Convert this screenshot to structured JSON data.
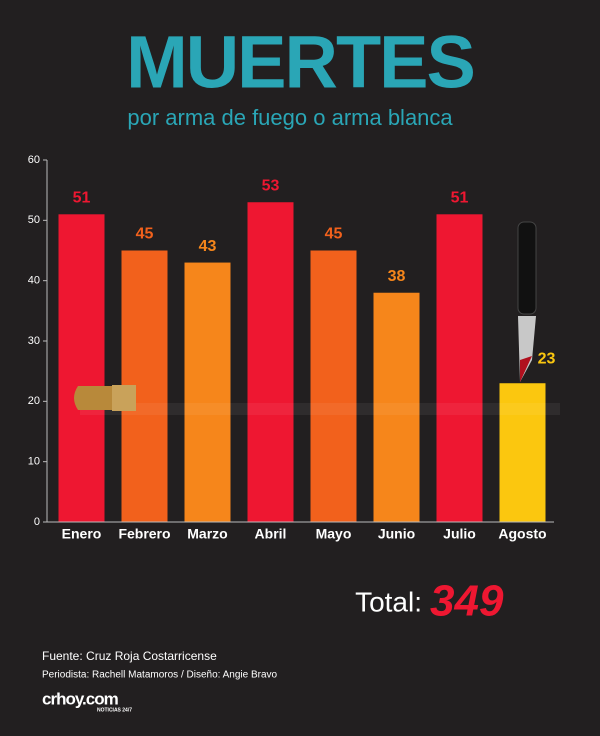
{
  "chart_data": {
    "type": "bar",
    "title": "MUERTES",
    "subtitle": "por arma de fuego o arma blanca",
    "categories": [
      "Enero",
      "Febrero",
      "Marzo",
      "Abril",
      "Mayo",
      "Junio",
      "Julio",
      "Agosto"
    ],
    "values": [
      51,
      45,
      43,
      53,
      45,
      38,
      51,
      23
    ],
    "colors": [
      "#ee1731",
      "#f2611c",
      "#f6861b",
      "#ee1731",
      "#f2611c",
      "#f6861b",
      "#ee1731",
      "#fbc70f"
    ],
    "ylim": [
      0,
      60
    ],
    "yticks": [
      0,
      10,
      20,
      30,
      40,
      50,
      60
    ],
    "grid": false
  },
  "total": {
    "label": "Total:",
    "value": 349
  },
  "footer": {
    "source": "Fuente: Cruz Roja Costarricense",
    "credits": "Periodista: Rachell Matamoros / Diseño: Angie Bravo",
    "brand": "crhoy.com",
    "tagline": "NOTICIAS 24/7"
  }
}
